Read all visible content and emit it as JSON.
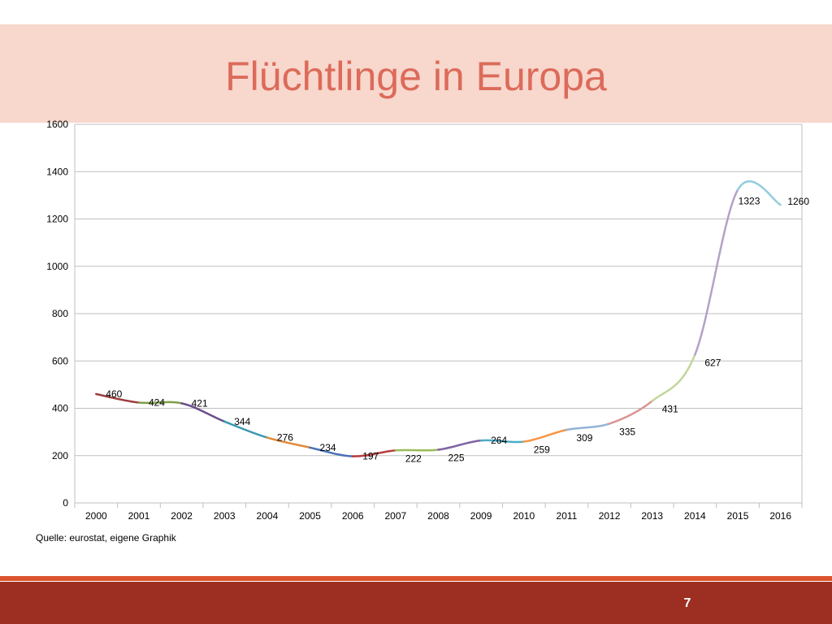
{
  "slide": {
    "title": "Flüchtlinge in Europa",
    "source": "Quelle: eurostat, eigene Graphik",
    "page_number": "7"
  },
  "colors": {
    "title": "#dc6b5a",
    "title_band": "#f8d7cd",
    "footer": "#9c2f21",
    "footer_stripe": "#d9532e",
    "segments": [
      "#9c3a3a",
      "#7f9e48",
      "#6a4f8a",
      "#3a97b0",
      "#e08a3a",
      "#4a73b5",
      "#b83d3d",
      "#9bbb59",
      "#8064a2",
      "#4bacc6",
      "#f79646",
      "#95b3d7",
      "#d99694",
      "#c3d69b",
      "#b3a2c7",
      "#93cddd"
    ]
  },
  "chart_data": {
    "type": "line",
    "title": "",
    "xlabel": "",
    "ylabel": "",
    "categories": [
      "2000",
      "2001",
      "2002",
      "2003",
      "2004",
      "2005",
      "2006",
      "2007",
      "2008",
      "2009",
      "2010",
      "2011",
      "2012",
      "2013",
      "2014",
      "2015",
      "2016"
    ],
    "series": [
      {
        "values": [
          460,
          424,
          421,
          344,
          276,
          234,
          197,
          222,
          225,
          264,
          259,
          309,
          335,
          431,
          627,
          1323,
          1260
        ],
        "labels": [
          "460",
          "424",
          "421",
          "344",
          "276",
          "234",
          "197",
          "222",
          "225",
          "264",
          "259",
          "309",
          "335",
          "431",
          "627",
          "1323",
          "1260"
        ]
      }
    ],
    "ylim": [
      0,
      1600
    ],
    "yticks": [
      0,
      200,
      400,
      600,
      800,
      1000,
      1200,
      1400,
      1600
    ],
    "ytick_labels": [
      "0",
      "200",
      "400",
      "600",
      "800",
      "1000",
      "1200",
      "1400",
      "1600"
    ],
    "grid": true,
    "smoothed": true,
    "legend": "none"
  }
}
